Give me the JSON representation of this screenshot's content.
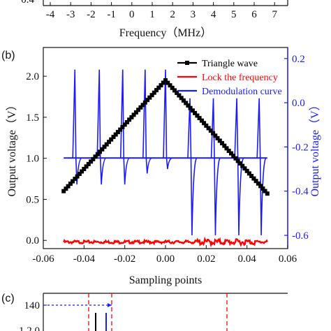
{
  "top_fragment": {
    "y_tick": "0.4",
    "x_ticks": [
      "-4",
      "-3",
      "-2",
      "-1",
      "0",
      "1",
      "2",
      "3",
      "4",
      "5",
      "6",
      "7"
    ],
    "xlabel": "Frequency（MHz）"
  },
  "panel_b": {
    "label": "(b)",
    "xlabel": "Sampling points",
    "ylabel": "Output voltage（V）",
    "ylabel_right": "Output voltage（V）",
    "legend": [
      "Triangle wave",
      "Lock the frequency",
      "Demodulation curve"
    ],
    "colors": {
      "triangle": "#000000",
      "lock": "#ff0000",
      "demod": "#1a1aff"
    }
  },
  "panel_c": {
    "label": "(c)",
    "y_tick": "140",
    "y_tick_partial": "1 2 0"
  },
  "chart_data": [
    {
      "type": "line",
      "panel": "b",
      "xlabel": "Sampling points",
      "ylabel": "Output voltage（V）",
      "ylabel_right": "Output voltage（V）",
      "xlim": [
        -0.06,
        0.06
      ],
      "ylim": [
        -0.1,
        2.35
      ],
      "ylim_right": [
        -0.66,
        0.25
      ],
      "x_ticks": [
        "-0.06",
        "-0.04",
        "-0.02",
        "0.00",
        "0.02",
        "0.04",
        "0.06"
      ],
      "y_ticks": [
        "0.0",
        "0.5",
        "1.0",
        "1.5",
        "2.0"
      ],
      "y_ticks_right": [
        "-0.6",
        "-0.4",
        "-0.2",
        "0.0",
        "0.2"
      ],
      "series": [
        {
          "name": "Triangle wave",
          "axis": "left",
          "x": [
            -0.05,
            0.0,
            0.05
          ],
          "values": [
            0.6,
            1.95,
            0.57
          ]
        },
        {
          "name": "Lock the frequency",
          "axis": "left",
          "x": [
            -0.05,
            0.05
          ],
          "values": [
            -0.02,
            -0.02
          ]
        },
        {
          "name": "Demodulation curve",
          "axis": "right",
          "baseline": -0.25,
          "spikes_up": [
            {
              "x": -0.0445,
              "peak": 0.15
            },
            {
              "x": -0.0325,
              "peak": 0.15
            },
            {
              "x": -0.021,
              "peak": 0.15
            },
            {
              "x": -0.01,
              "peak": 0.15
            },
            {
              "x": 0.0,
              "peak": 0.15
            },
            {
              "x": 0.012,
              "peak": 0.02
            },
            {
              "x": 0.0235,
              "peak": 0.02
            },
            {
              "x": 0.035,
              "peak": 0.02
            },
            {
              "x": 0.046,
              "peak": 0.02
            }
          ],
          "dips": [
            {
              "x": -0.0435,
              "min": -0.37
            },
            {
              "x": -0.0315,
              "min": -0.37
            },
            {
              "x": -0.02,
              "min": -0.37
            },
            {
              "x": -0.009,
              "min": -0.32
            },
            {
              "x": 0.001,
              "min": -0.3
            },
            {
              "x": 0.013,
              "min": -0.6
            },
            {
              "x": 0.0245,
              "min": -0.6
            },
            {
              "x": 0.036,
              "min": -0.6
            },
            {
              "x": 0.047,
              "min": -0.6
            }
          ]
        }
      ]
    }
  ]
}
